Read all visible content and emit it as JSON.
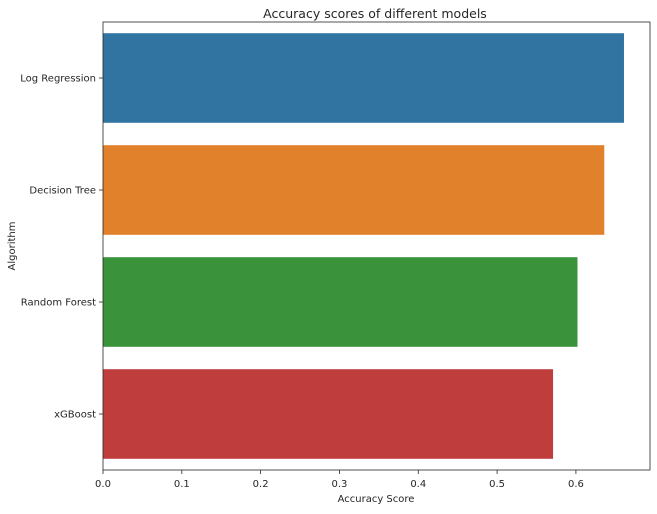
{
  "chart_data": {
    "type": "bar",
    "orientation": "horizontal",
    "title": "Accuracy scores of different models",
    "xlabel": "Accuracy Score",
    "ylabel": "Algorithm",
    "categories": [
      "Log Regression",
      "Decision Tree",
      "Random Forest",
      "xGBoost"
    ],
    "values": [
      0.661,
      0.636,
      0.602,
      0.571
    ],
    "colors": [
      "#3274a1",
      "#e1812c",
      "#3a923a",
      "#c03d3e"
    ],
    "xlim": [
      0.0,
      0.694
    ],
    "xticks": [
      0.0,
      0.1,
      0.2,
      0.3,
      0.4,
      0.5,
      0.6
    ],
    "xtick_labels": [
      "0.0",
      "0.1",
      "0.2",
      "0.3",
      "0.4",
      "0.5",
      "0.6"
    ],
    "grid": false,
    "legend": "none"
  }
}
